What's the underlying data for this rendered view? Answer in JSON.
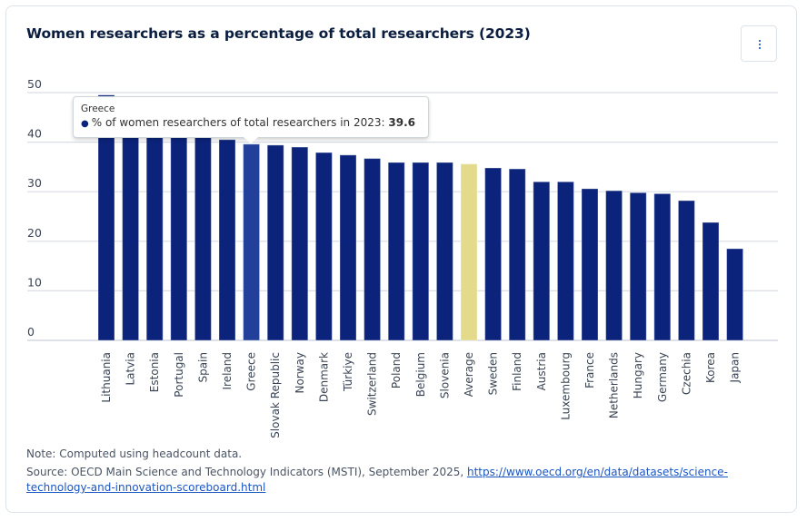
{
  "title": "Women researchers as a percentage of total researchers (2023)",
  "menu": {
    "icon": "more-vertical-icon"
  },
  "tooltip": {
    "country": "Greece",
    "series_label": "% of women researchers of total researchers in 2023:",
    "value": "39.6"
  },
  "footer": {
    "note": "Note: Computed using headcount data.",
    "source_prefix": "Source: OECD Main Science and Technology Indicators (MSTI), September 2025, ",
    "source_link": "https://www.oecd.org/en/data/datasets/science-technology-and-innovation-scoreboard.html"
  },
  "colors": {
    "bar": "#0b237a",
    "bar_highlight": "#22409a",
    "average": "#e3da8c",
    "grid": "#d9dee5"
  },
  "chart_data": {
    "type": "bar",
    "title": "Women researchers as a percentage of total researchers (2023)",
    "xlabel": "",
    "ylabel": "",
    "ylim": [
      0,
      50
    ],
    "yticks": [
      0,
      10,
      20,
      30,
      40,
      50
    ],
    "grid": true,
    "highlighted": "Greece",
    "average_category": "Average",
    "categories": [
      "Lithuania",
      "Latvia",
      "Estonia",
      "Portugal",
      "Spain",
      "Ireland",
      "Greece",
      "Slovak Republic",
      "Norway",
      "Denmark",
      "Türkiye",
      "Switzerland",
      "Poland",
      "Belgium",
      "Slovenia",
      "Average",
      "Sweden",
      "Finland",
      "Austria",
      "Luxembourg",
      "France",
      "Netherlands",
      "Hungary",
      "Germany",
      "Czechia",
      "Korea",
      "Japan"
    ],
    "series": [
      {
        "name": "% of women researchers of total researchers in 2023",
        "values": [
          49.5,
          48.3,
          45.1,
          44.3,
          41.8,
          40.5,
          39.6,
          39.4,
          39.0,
          37.9,
          37.4,
          36.7,
          35.9,
          35.9,
          35.9,
          35.6,
          34.8,
          34.6,
          32.0,
          32.0,
          30.6,
          30.2,
          29.8,
          29.6,
          28.2,
          23.8,
          18.5
        ]
      }
    ]
  }
}
